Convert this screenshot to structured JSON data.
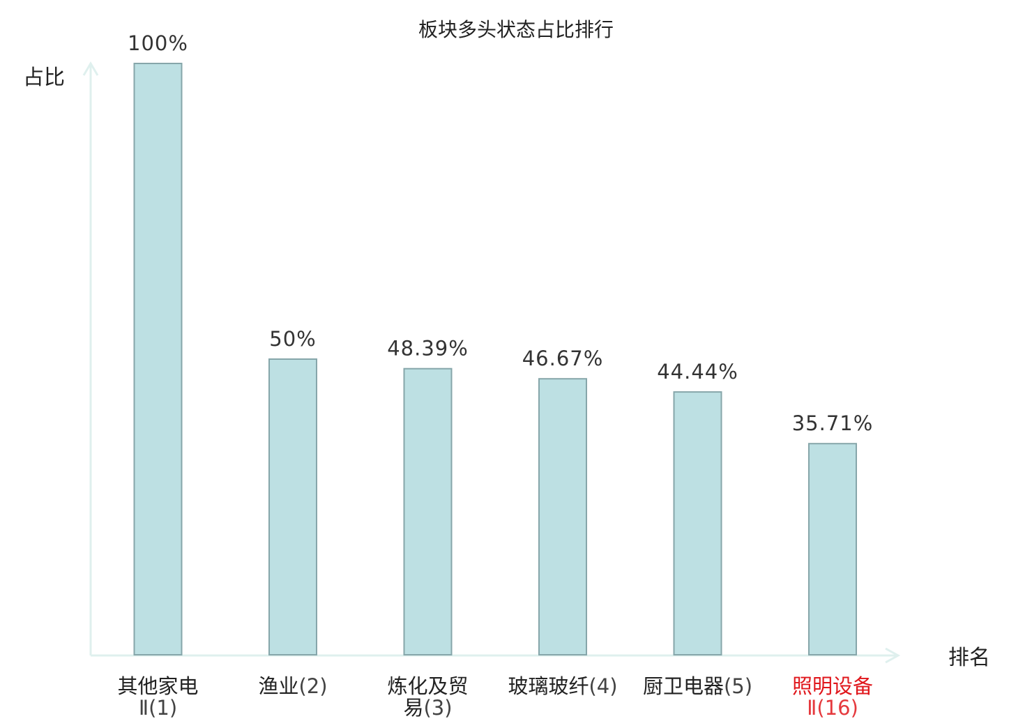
{
  "chart_data": {
    "type": "bar",
    "title": "板块多头状态占比排行",
    "xlabel": "排名",
    "ylabel": "占比",
    "ylim": [
      0,
      100
    ],
    "grid": false,
    "categories": [
      {
        "name": "其他家电",
        "rank": "Ⅱ(1)",
        "highlight": false
      },
      {
        "name": "渔业",
        "rank": "(2)",
        "highlight": false
      },
      {
        "name": "炼化及贸易",
        "rank": "(3)",
        "highlight": false
      },
      {
        "name": "玻璃玻纤",
        "rank": "(4)",
        "highlight": false
      },
      {
        "name": "厨卫电器",
        "rank": "(5)",
        "highlight": false
      },
      {
        "name": "照明设备",
        "rank": "Ⅱ(16)",
        "highlight": true
      }
    ],
    "values": [
      100,
      50,
      48.39,
      46.67,
      44.44,
      35.71
    ],
    "value_labels": [
      "100%",
      "50%",
      "48.39%",
      "46.67%",
      "44.44%",
      "35.71%"
    ],
    "colors": {
      "bar_fill": "#bde0e3",
      "bar_stroke": "#86a6aa",
      "axis": "#dff0ee",
      "label": "#222222",
      "highlight": "#e0161b"
    }
  }
}
